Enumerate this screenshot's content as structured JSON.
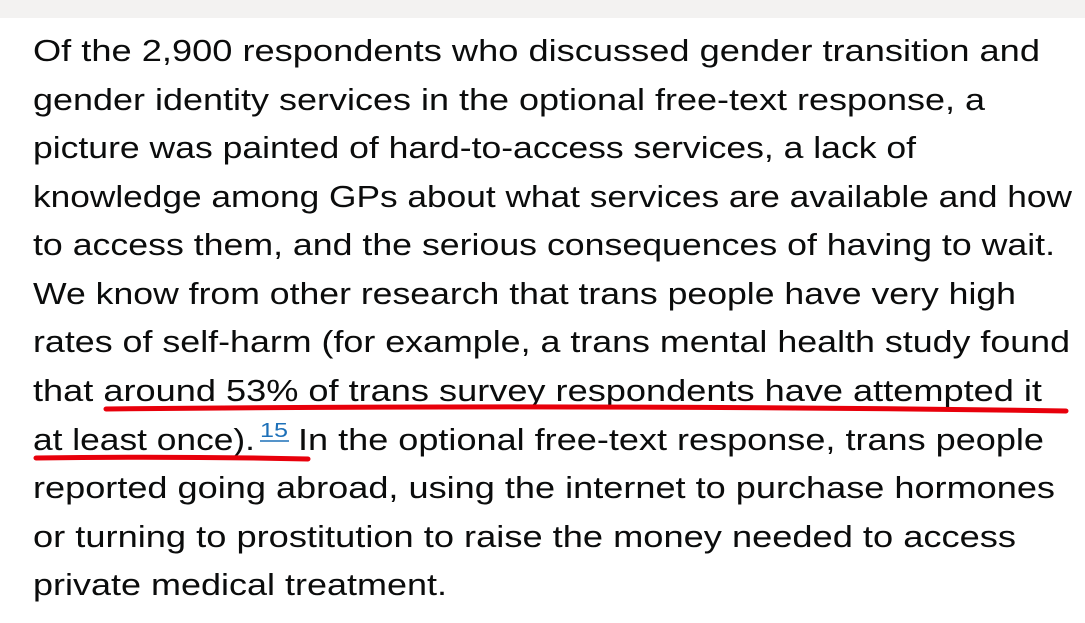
{
  "paragraph": {
    "lines": [
      "Of the 2,900 respondents who discussed gender transition and",
      "gender identity services in the optional free-text response, a",
      "picture was painted of hard-to-access services, a lack of",
      "knowledge among GPs about what services are available and how",
      "to access them, and the serious consequences of having to wait.",
      "We know from other research that trans people have very high",
      "rates of self-harm (for example, a trans mental health study found",
      "that around 53% of trans survey respondents have attempted it",
      "at least once).",
      "In the optional free-text response, trans people",
      "reported going abroad, using the internet to purchase hormones",
      "or turning to prostitution to raise the money needed to access",
      "private medical treatment."
    ],
    "footnote": "15"
  }
}
